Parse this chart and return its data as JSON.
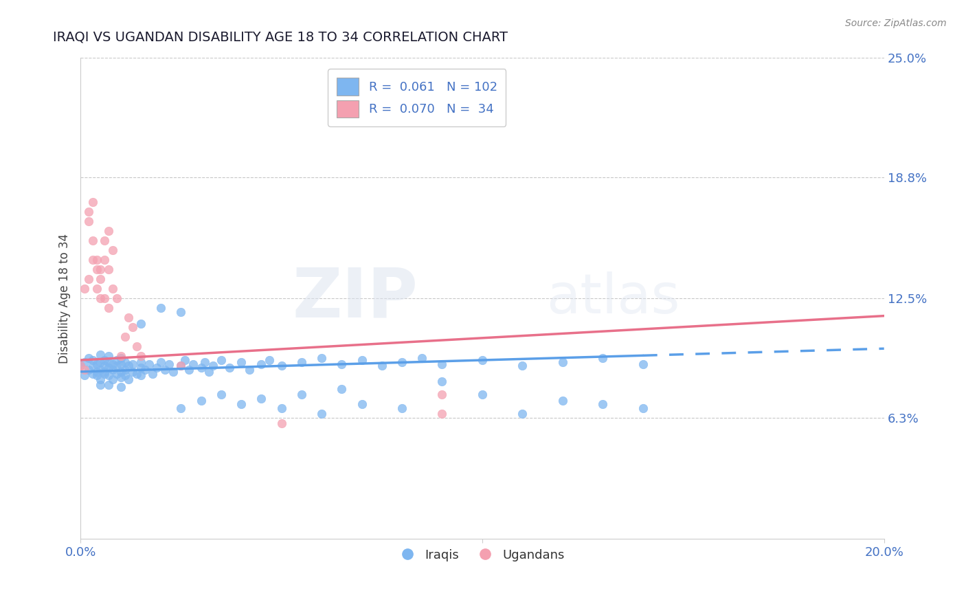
{
  "title": "IRAQI VS UGANDAN DISABILITY AGE 18 TO 34 CORRELATION CHART",
  "source": "Source: ZipAtlas.com",
  "ylabel": "Disability Age 18 to 34",
  "xlim": [
    0.0,
    0.2
  ],
  "ylim": [
    0.0,
    0.25
  ],
  "ytick_labels": [
    "6.3%",
    "12.5%",
    "18.8%",
    "25.0%"
  ],
  "ytick_values": [
    0.063,
    0.125,
    0.188,
    0.25
  ],
  "xtick_values": [
    0.0,
    0.1,
    0.2
  ],
  "xtick_labels": [
    "0.0%",
    "",
    "20.0%"
  ],
  "legend_r_iraqi": "0.061",
  "legend_n_iraqi": "102",
  "legend_r_ugandan": "0.070",
  "legend_n_ugandan": "34",
  "color_iraqi": "#7EB6F0",
  "color_iraqi_line": "#5B9FE8",
  "color_ugandan": "#F4A0B0",
  "color_ugandan_line": "#E8708A",
  "color_text_blue": "#4472C4",
  "background_color": "#FFFFFF",
  "grid_color": "#C8C8C8",
  "iraqi_scatter_x": [
    0.0,
    0.001,
    0.001,
    0.002,
    0.002,
    0.003,
    0.003,
    0.003,
    0.004,
    0.004,
    0.004,
    0.005,
    0.005,
    0.005,
    0.005,
    0.005,
    0.006,
    0.006,
    0.006,
    0.006,
    0.007,
    0.007,
    0.007,
    0.007,
    0.007,
    0.008,
    0.008,
    0.008,
    0.009,
    0.009,
    0.009,
    0.01,
    0.01,
    0.01,
    0.01,
    0.01,
    0.011,
    0.011,
    0.011,
    0.012,
    0.012,
    0.013,
    0.013,
    0.014,
    0.015,
    0.015,
    0.015,
    0.016,
    0.017,
    0.018,
    0.019,
    0.02,
    0.021,
    0.022,
    0.023,
    0.025,
    0.026,
    0.027,
    0.028,
    0.03,
    0.031,
    0.032,
    0.033,
    0.035,
    0.037,
    0.04,
    0.042,
    0.045,
    0.047,
    0.05,
    0.055,
    0.06,
    0.065,
    0.07,
    0.075,
    0.08,
    0.085,
    0.09,
    0.1,
    0.11,
    0.12,
    0.13,
    0.14,
    0.025,
    0.03,
    0.035,
    0.04,
    0.045,
    0.05,
    0.055,
    0.06,
    0.065,
    0.07,
    0.08,
    0.09,
    0.1,
    0.11,
    0.12,
    0.13,
    0.14,
    0.015,
    0.02,
    0.025
  ],
  "iraqi_scatter_y": [
    0.09,
    0.085,
    0.092,
    0.088,
    0.094,
    0.086,
    0.09,
    0.093,
    0.087,
    0.091,
    0.085,
    0.088,
    0.092,
    0.083,
    0.096,
    0.08,
    0.086,
    0.09,
    0.087,
    0.093,
    0.085,
    0.089,
    0.092,
    0.08,
    0.095,
    0.088,
    0.083,
    0.091,
    0.086,
    0.09,
    0.093,
    0.087,
    0.091,
    0.084,
    0.094,
    0.079,
    0.088,
    0.092,
    0.085,
    0.09,
    0.083,
    0.087,
    0.091,
    0.086,
    0.089,
    0.092,
    0.085,
    0.088,
    0.091,
    0.086,
    0.089,
    0.092,
    0.088,
    0.091,
    0.087,
    0.09,
    0.093,
    0.088,
    0.091,
    0.089,
    0.092,
    0.087,
    0.09,
    0.093,
    0.089,
    0.092,
    0.088,
    0.091,
    0.093,
    0.09,
    0.092,
    0.094,
    0.091,
    0.093,
    0.09,
    0.092,
    0.094,
    0.091,
    0.093,
    0.09,
    0.092,
    0.094,
    0.091,
    0.068,
    0.072,
    0.075,
    0.07,
    0.073,
    0.068,
    0.075,
    0.065,
    0.078,
    0.07,
    0.068,
    0.082,
    0.075,
    0.065,
    0.072,
    0.07,
    0.068,
    0.112,
    0.12,
    0.118
  ],
  "ugandan_scatter_x": [
    0.0,
    0.001,
    0.001,
    0.002,
    0.002,
    0.003,
    0.003,
    0.004,
    0.004,
    0.005,
    0.005,
    0.006,
    0.006,
    0.007,
    0.007,
    0.008,
    0.008,
    0.009,
    0.01,
    0.011,
    0.012,
    0.013,
    0.014,
    0.015,
    0.002,
    0.003,
    0.004,
    0.005,
    0.006,
    0.007,
    0.025,
    0.05,
    0.09,
    0.09
  ],
  "ugandan_scatter_y": [
    0.09,
    0.088,
    0.13,
    0.135,
    0.17,
    0.155,
    0.145,
    0.14,
    0.13,
    0.135,
    0.125,
    0.155,
    0.145,
    0.16,
    0.14,
    0.15,
    0.13,
    0.125,
    0.095,
    0.105,
    0.115,
    0.11,
    0.1,
    0.095,
    0.165,
    0.175,
    0.145,
    0.14,
    0.125,
    0.12,
    0.09,
    0.06,
    0.065,
    0.075
  ]
}
